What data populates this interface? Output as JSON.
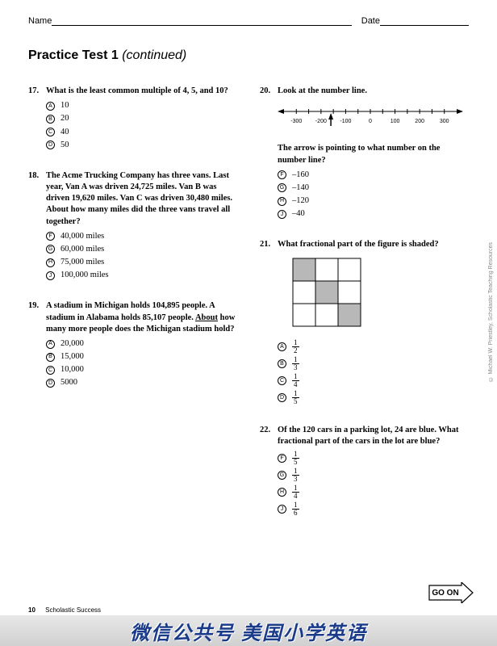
{
  "header": {
    "name_label": "Name",
    "date_label": "Date"
  },
  "title": {
    "main": "Practice Test 1",
    "cont": " (continued)"
  },
  "side_credit": "© Michael W. Priestley, Scholastic Teaching Resources",
  "go_on": "GO ON",
  "footer": {
    "page_num": "10",
    "text": "Scholastic Success"
  },
  "watermark": "微信公共号 美国小学英语",
  "q17": {
    "num": "17.",
    "text": "What is the least common multiple of 4, 5, and 10?",
    "a": {
      "letter": "A",
      "text": "10"
    },
    "b": {
      "letter": "B",
      "text": "20"
    },
    "c": {
      "letter": "C",
      "text": "40"
    },
    "d": {
      "letter": "D",
      "text": "50"
    }
  },
  "q18": {
    "num": "18.",
    "text": "The Acme Trucking Company has three vans. Last year, Van A was driven 24,725 miles. Van B was driven 19,620 miles. Van C was driven 30,480 miles. About how many miles did the three vans travel all together?",
    "f": {
      "letter": "F",
      "text": "40,000 miles"
    },
    "g": {
      "letter": "G",
      "text": "60,000 miles"
    },
    "h": {
      "letter": "H",
      "text": "75,000 miles"
    },
    "j": {
      "letter": "J",
      "text": "100,000 miles"
    }
  },
  "q19": {
    "num": "19.",
    "pre": "A stadium in Michigan holds 104,895 people. A stadium in Alabama holds 85,107 people. ",
    "underlined": "About",
    "post": " how many more people does the Michigan stadium hold?",
    "a": {
      "letter": "A",
      "text": "20,000"
    },
    "b": {
      "letter": "B",
      "text": "15,000"
    },
    "c": {
      "letter": "C",
      "text": "10,000"
    },
    "d": {
      "letter": "D",
      "text": "5000"
    }
  },
  "q20": {
    "num": "20.",
    "intro": "Look at the number line.",
    "text2": "The arrow is pointing to what number on the number line?",
    "numline": {
      "ticks": [
        "-300",
        "-200",
        "-100",
        "0",
        "100",
        "200",
        "300"
      ],
      "arrow_value": -160,
      "min": -350,
      "max": 350
    },
    "f": {
      "letter": "F",
      "text": "–160"
    },
    "g": {
      "letter": "G",
      "text": "–140"
    },
    "h": {
      "letter": "H",
      "text": "–120"
    },
    "j": {
      "letter": "J",
      "text": "–40"
    }
  },
  "q21": {
    "num": "21.",
    "text": "What fractional part of the figure is shaded?",
    "grid": {
      "rows": 3,
      "cols": 3,
      "shaded": [
        [
          0,
          0
        ],
        [
          1,
          1
        ],
        [
          2,
          2
        ]
      ],
      "fill": "#b8b8b8",
      "stroke": "#000000",
      "cell": 28
    },
    "a": {
      "letter": "A",
      "n": "1",
      "d": "2"
    },
    "b": {
      "letter": "B",
      "n": "1",
      "d": "3"
    },
    "c": {
      "letter": "C",
      "n": "1",
      "d": "4"
    },
    "d": {
      "letter": "D",
      "n": "1",
      "d": "5"
    }
  },
  "q22": {
    "num": "22.",
    "text": "Of the 120 cars in a parking lot, 24 are blue. What fractional part of the cars in the lot are blue?",
    "f": {
      "letter": "F",
      "n": "1",
      "d": "5"
    },
    "g": {
      "letter": "G",
      "n": "1",
      "d": "3"
    },
    "h": {
      "letter": "H",
      "n": "1",
      "d": "4"
    },
    "j": {
      "letter": "J",
      "n": "1",
      "d": "6"
    }
  }
}
